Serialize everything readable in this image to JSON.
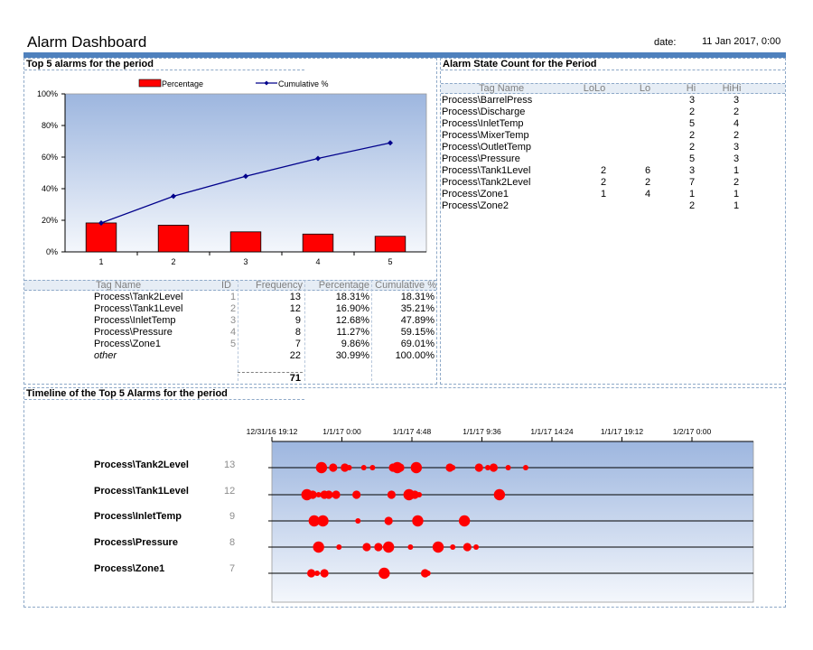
{
  "header": {
    "title": "Alarm Dashboard",
    "date_label": "date:",
    "date_value": "11 Jan 2017, 0:00"
  },
  "top5": {
    "section_title": "Top 5 alarms for the period",
    "legend": {
      "bar": "Percentage",
      "line": "Cumulative %"
    },
    "columns": [
      "Tag Name",
      "ID",
      "Frequency",
      "Percentage",
      "Cumulative %"
    ],
    "rows": [
      {
        "tag": "Process\\Tank2Level",
        "id": "1",
        "freq": "13",
        "pct": "18.31%",
        "cum": "18.31%"
      },
      {
        "tag": "Process\\Tank1Level",
        "id": "2",
        "freq": "12",
        "pct": "16.90%",
        "cum": "35.21%"
      },
      {
        "tag": "Process\\InletTemp",
        "id": "3",
        "freq": "9",
        "pct": "12.68%",
        "cum": "47.89%"
      },
      {
        "tag": "Process\\Pressure",
        "id": "4",
        "freq": "8",
        "pct": "11.27%",
        "cum": "59.15%"
      },
      {
        "tag": "Process\\Zone1",
        "id": "5",
        "freq": "7",
        "pct": "9.86%",
        "cum": "69.01%"
      },
      {
        "tag": "other",
        "id": "",
        "freq": "22",
        "pct": "30.99%",
        "cum": "100.00%"
      }
    ],
    "total": "71"
  },
  "chart_data": {
    "type": "bar",
    "categories": [
      "1",
      "2",
      "3",
      "4",
      "5"
    ],
    "series": [
      {
        "name": "Percentage",
        "kind": "bar",
        "values": [
          18.31,
          16.9,
          12.68,
          11.27,
          9.86
        ],
        "color": "#ff0000"
      },
      {
        "name": "Cumulative %",
        "kind": "line",
        "values": [
          18.31,
          35.21,
          47.89,
          59.15,
          69.01
        ],
        "color": "#00008b"
      }
    ],
    "y_ticks": [
      "0%",
      "20%",
      "40%",
      "60%",
      "80%",
      "100%"
    ],
    "ylim": [
      0,
      100
    ],
    "legend_position": "top",
    "grid": false
  },
  "state_count": {
    "section_title": "Alarm State Count for the Period",
    "columns": [
      "Tag Name",
      "LoLo",
      "Lo",
      "Hi",
      "HiHi"
    ],
    "rows": [
      {
        "tag": "Process\\BarrelPress",
        "lolo": "",
        "lo": "",
        "hi": "3",
        "hihi": "3"
      },
      {
        "tag": "Process\\Discharge",
        "lolo": "",
        "lo": "",
        "hi": "2",
        "hihi": "2"
      },
      {
        "tag": "Process\\InletTemp",
        "lolo": "",
        "lo": "",
        "hi": "5",
        "hihi": "4"
      },
      {
        "tag": "Process\\MixerTemp",
        "lolo": "",
        "lo": "",
        "hi": "2",
        "hihi": "2"
      },
      {
        "tag": "Process\\OutletTemp",
        "lolo": "",
        "lo": "",
        "hi": "2",
        "hihi": "3"
      },
      {
        "tag": "Process\\Pressure",
        "lolo": "",
        "lo": "",
        "hi": "5",
        "hihi": "3"
      },
      {
        "tag": "Process\\Tank1Level",
        "lolo": "2",
        "lo": "6",
        "hi": "3",
        "hihi": "1"
      },
      {
        "tag": "Process\\Tank2Level",
        "lolo": "2",
        "lo": "2",
        "hi": "7",
        "hihi": "2"
      },
      {
        "tag": "Process\\Zone1",
        "lolo": "1",
        "lo": "4",
        "hi": "1",
        "hihi": "1"
      },
      {
        "tag": "Process\\Zone2",
        "lolo": "",
        "lo": "",
        "hi": "2",
        "hihi": "1"
      }
    ]
  },
  "timeline": {
    "section_title": "Timeline of the Top 5 Alarms for the period",
    "axis_labels": [
      "12/31/16 19:12",
      "1/1/17 0:00",
      "1/1/17 4:48",
      "1/1/17 9:36",
      "1/1/17 14:24",
      "1/1/17 19:12",
      "1/2/17 0:00"
    ],
    "rows": [
      {
        "tag": "Process\\Tank2Level",
        "count": "13",
        "events": [
          [
            3.4,
            "l"
          ],
          [
            4.2,
            "m"
          ],
          [
            5.0,
            "m"
          ],
          [
            5.3,
            "s"
          ],
          [
            6.3,
            "s"
          ],
          [
            6.9,
            "s"
          ],
          [
            8.3,
            "m"
          ],
          [
            8.6,
            "l"
          ],
          [
            8.8,
            "m"
          ],
          [
            9.9,
            "l"
          ],
          [
            12.2,
            "m"
          ],
          [
            12.4,
            "s"
          ],
          [
            14.2,
            "m"
          ],
          [
            14.8,
            "s"
          ],
          [
            15.2,
            "m"
          ],
          [
            16.2,
            "s"
          ],
          [
            17.4,
            "s"
          ]
        ]
      },
      {
        "tag": "Process\\Tank1Level",
        "count": "12",
        "events": [
          [
            2.4,
            "l"
          ],
          [
            2.8,
            "m"
          ],
          [
            3.2,
            "s"
          ],
          [
            3.6,
            "m"
          ],
          [
            3.9,
            "m"
          ],
          [
            4.4,
            "m"
          ],
          [
            5.8,
            "m"
          ],
          [
            8.2,
            "m"
          ],
          [
            9.4,
            "l"
          ],
          [
            9.8,
            "m"
          ],
          [
            10.1,
            "s"
          ],
          [
            15.6,
            "l"
          ]
        ]
      },
      {
        "tag": "Process\\InletTemp",
        "count": "9",
        "events": [
          [
            2.9,
            "l"
          ],
          [
            3.5,
            "l"
          ],
          [
            5.9,
            "s"
          ],
          [
            8.0,
            "m"
          ],
          [
            10.0,
            "l"
          ],
          [
            13.2,
            "l"
          ]
        ]
      },
      {
        "tag": "Process\\Pressure",
        "count": "8",
        "events": [
          [
            3.2,
            "l"
          ],
          [
            4.6,
            "s"
          ],
          [
            6.5,
            "m"
          ],
          [
            7.3,
            "m"
          ],
          [
            8.0,
            "l"
          ],
          [
            9.5,
            "s"
          ],
          [
            11.4,
            "l"
          ],
          [
            12.4,
            "s"
          ],
          [
            13.4,
            "m"
          ],
          [
            14.0,
            "s"
          ]
        ]
      },
      {
        "tag": "Process\\Zone1",
        "count": "7",
        "events": [
          [
            2.7,
            "m"
          ],
          [
            3.1,
            "s"
          ],
          [
            3.6,
            "m"
          ],
          [
            7.7,
            "l"
          ],
          [
            10.5,
            "m"
          ],
          [
            10.7,
            "s"
          ]
        ]
      }
    ]
  }
}
